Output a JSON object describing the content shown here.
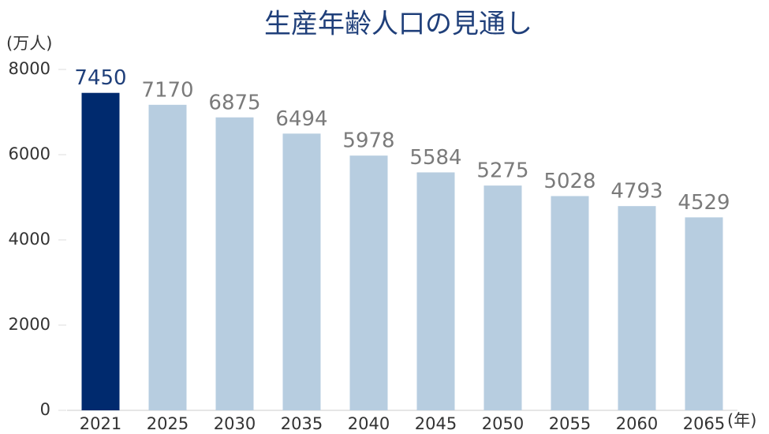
{
  "chart_data": {
    "type": "bar",
    "title": "生産年齢人口の見通し",
    "y_label": "(万人)",
    "x_label": "(年)",
    "categories": [
      "2021",
      "2025",
      "2030",
      "2035",
      "2040",
      "2045",
      "2050",
      "2055",
      "2060",
      "2065"
    ],
    "values": [
      7450,
      7170,
      6875,
      6494,
      5978,
      5584,
      5275,
      5028,
      4793,
      4529
    ],
    "colors": [
      "#002a6e",
      "#b7cde0",
      "#b7cde0",
      "#b7cde0",
      "#b7cde0",
      "#b7cde0",
      "#b7cde0",
      "#b7cde0",
      "#b7cde0",
      "#b7cde0"
    ],
    "label_colors": [
      "#1f3f7a",
      "#7a7a7a",
      "#7a7a7a",
      "#7a7a7a",
      "#7a7a7a",
      "#7a7a7a",
      "#7a7a7a",
      "#7a7a7a",
      "#7a7a7a",
      "#7a7a7a"
    ],
    "ylim": [
      0,
      8000
    ],
    "yticks": [
      0,
      2000,
      4000,
      6000,
      8000
    ],
    "grid": false
  }
}
